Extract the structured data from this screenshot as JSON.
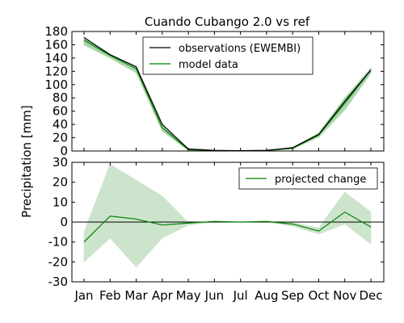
{
  "chart_data": {
    "title": "Cuando Cubango 2.0 vs ref",
    "ylabel": "Precipitation [mm]",
    "categories": [
      "Jan",
      "Feb",
      "Mar",
      "Apr",
      "May",
      "Jun",
      "Jul",
      "Aug",
      "Sep",
      "Oct",
      "Nov",
      "Dec"
    ],
    "panels": [
      {
        "type": "line",
        "ylim": [
          0,
          180
        ],
        "yticks": [
          0,
          20,
          40,
          60,
          80,
          100,
          120,
          140,
          160,
          180
        ],
        "legend_placement": "top-center",
        "series": [
          {
            "name": "observations (EWEMBI)",
            "color": "#000000",
            "values": [
              171,
              145,
              127,
              40,
              3,
              1,
              0.5,
              1,
              5,
              25,
              75,
              122
            ]
          },
          {
            "name": "model data",
            "color": "#008000",
            "values": [
              167,
              144,
              124,
              35,
              2,
              0.5,
              0.3,
              0.8,
              4,
              24,
              72,
              122
            ],
            "band": {
              "color": "#90c890",
              "upper": [
                170,
                146,
                126,
                38,
                3,
                1,
                0.6,
                1.2,
                5,
                27,
                80,
                125
              ],
              "lower": [
                160,
                140,
                118,
                30,
                1,
                0.2,
                0.1,
                0.4,
                3,
                21,
                62,
                117
              ]
            }
          }
        ]
      },
      {
        "type": "area",
        "ylim": [
          -30,
          30
        ],
        "yticks": [
          -30,
          -20,
          -10,
          0,
          10,
          20,
          30
        ],
        "legend_placement": "top-right",
        "zero_line": true,
        "series": [
          {
            "name": "projected change",
            "color": "#008000",
            "values": [
              -10,
              3,
              1.5,
              -1.5,
              -0.5,
              0.3,
              0,
              0.3,
              -1,
              -4.5,
              5,
              -2.5
            ],
            "band": {
              "color": "#bcdcbc",
              "upper": [
                -5,
                29,
                21,
                13,
                -0.3,
                0.5,
                0.1,
                0.5,
                -0.2,
                -3,
                15,
                5
              ],
              "lower": [
                -20,
                -8,
                -22.5,
                -8,
                -1.5,
                0,
                -0.1,
                0,
                -2,
                -6,
                -1,
                -11
              ]
            }
          }
        ]
      }
    ]
  }
}
